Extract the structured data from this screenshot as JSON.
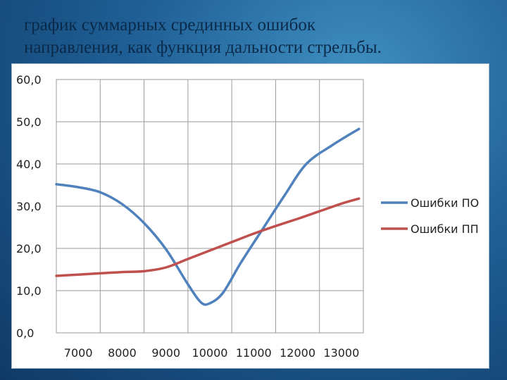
{
  "slide": {
    "title_line1": "график суммарных срединных ошибок",
    "title_line2": "направления, как функция дальности стрельбы."
  },
  "chart_data": {
    "type": "line",
    "title": "",
    "xlabel": "",
    "ylabel": "",
    "ylim": [
      0,
      60
    ],
    "xlim": [
      7000,
      13000
    ],
    "grid": true,
    "legend_position": "right",
    "y_ticks": [
      "0,0",
      "10,0",
      "20,0",
      "30,0",
      "40,0",
      "50,0",
      "60,0"
    ],
    "x_ticks": [
      "7000",
      "8000",
      "9000",
      "10000",
      "11000",
      "12000",
      "13000"
    ],
    "series": [
      {
        "name": "Ошибки ПО",
        "color": "#4f81bd",
        "points": [
          [
            6500,
            35.2
          ],
          [
            7000,
            34.5
          ],
          [
            7500,
            33.3
          ],
          [
            8000,
            30.5
          ],
          [
            8500,
            26.0
          ],
          [
            9000,
            19.8
          ],
          [
            9500,
            11.5
          ],
          [
            9800,
            7.2
          ],
          [
            10000,
            7.0
          ],
          [
            10300,
            9.5
          ],
          [
            10700,
            16.5
          ],
          [
            11200,
            24.5
          ],
          [
            11700,
            32.5
          ],
          [
            12200,
            40.0
          ],
          [
            12800,
            44.5
          ],
          [
            13400,
            48.3
          ]
        ]
      },
      {
        "name": "Ошибки ПП",
        "color": "#c0504d",
        "points": [
          [
            6500,
            13.5
          ],
          [
            7000,
            13.8
          ],
          [
            7500,
            14.1
          ],
          [
            8000,
            14.4
          ],
          [
            8500,
            14.6
          ],
          [
            9000,
            15.5
          ],
          [
            9500,
            17.5
          ],
          [
            10000,
            19.5
          ],
          [
            10500,
            21.5
          ],
          [
            11000,
            23.5
          ],
          [
            11500,
            25.3
          ],
          [
            12000,
            27.0
          ],
          [
            12500,
            28.8
          ],
          [
            13000,
            30.6
          ],
          [
            13400,
            31.8
          ]
        ]
      }
    ]
  }
}
